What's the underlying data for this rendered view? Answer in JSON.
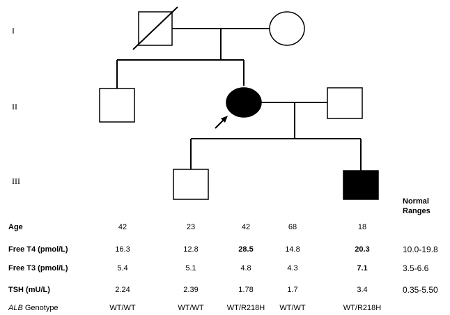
{
  "generations": [
    "I",
    "II",
    "III"
  ],
  "normal_ranges_header": [
    "Normal",
    "Ranges"
  ],
  "rows": [
    {
      "label": "Age",
      "values": [
        "42",
        "23",
        "42",
        "68",
        "18"
      ],
      "bold": [
        false,
        false,
        false,
        false,
        false
      ],
      "range": ""
    },
    {
      "label": "Free T4 (pmol/L)",
      "values": [
        "16.3",
        "12.8",
        "28.5",
        "14.8",
        "20.3"
      ],
      "bold": [
        false,
        false,
        true,
        false,
        true
      ],
      "range": "10.0-19.8"
    },
    {
      "label": "Free T3 (pmol/L)",
      "values": [
        "5.4",
        "5.1",
        "4.8",
        "4.3",
        "7.1"
      ],
      "bold": [
        false,
        false,
        false,
        false,
        true
      ],
      "range": "3.5-6.6"
    },
    {
      "label": "TSH (mU/L)",
      "values": [
        "2.24",
        "2.39",
        "1.78",
        "1.7",
        "3.4"
      ],
      "bold": [
        false,
        false,
        false,
        false,
        false
      ],
      "range": "0.35-5.50"
    }
  ],
  "genotype_row": {
    "gene": "ALB",
    "label_suffix": " Genotype",
    "values": [
      "WT/WT",
      "WT/WT",
      "WT/R218H",
      "WT/WT",
      "WT/R218H"
    ]
  }
}
